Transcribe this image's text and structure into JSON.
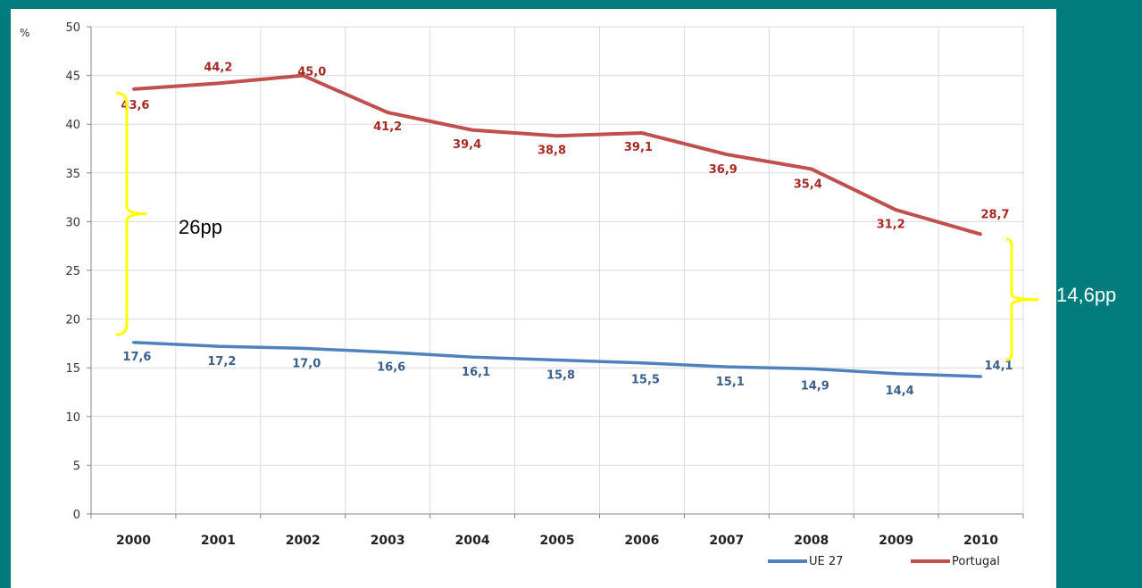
{
  "chart_data": {
    "type": "line",
    "ylabel": "%",
    "ylim": [
      0,
      50
    ],
    "yticks": [
      0,
      5,
      10,
      15,
      20,
      25,
      30,
      35,
      40,
      45,
      50
    ],
    "categories": [
      "2000",
      "2001",
      "2002",
      "2003",
      "2004",
      "2005",
      "2006",
      "2007",
      "2008",
      "2009",
      "2010"
    ],
    "grid": true,
    "legend_position": "bottom-right",
    "series": [
      {
        "name": "UE 27",
        "color": "#4f81bd",
        "values": [
          17.6,
          17.2,
          17.0,
          16.6,
          16.1,
          15.8,
          15.5,
          15.1,
          14.9,
          14.4,
          14.1
        ],
        "labels": [
          "17,6",
          "17,2",
          "17,0",
          "16,6",
          "16,1",
          "15,8",
          "15,5",
          "15,1",
          "14,9",
          "14,4",
          "14,1"
        ],
        "label_color": "#3a5f8a"
      },
      {
        "name": "Portugal",
        "color": "#c0504d",
        "values": [
          43.6,
          44.2,
          45.0,
          41.2,
          39.4,
          38.8,
          39.1,
          36.9,
          35.4,
          31.2,
          28.7
        ],
        "labels": [
          "43,6",
          "44,2",
          "45,0",
          "41,2",
          "39,4",
          "38,8",
          "39,1",
          "36,9",
          "35,4",
          "31,2",
          "28,7"
        ],
        "label_color": "#a52a24"
      }
    ],
    "annotations": [
      {
        "text": "26pp",
        "bracket": [
          18.4,
          43.2
        ],
        "color": "#ffff00"
      },
      {
        "text": "14,6pp",
        "bracket": [
          15.8,
          28.2
        ],
        "color": "#ffff00"
      }
    ]
  }
}
